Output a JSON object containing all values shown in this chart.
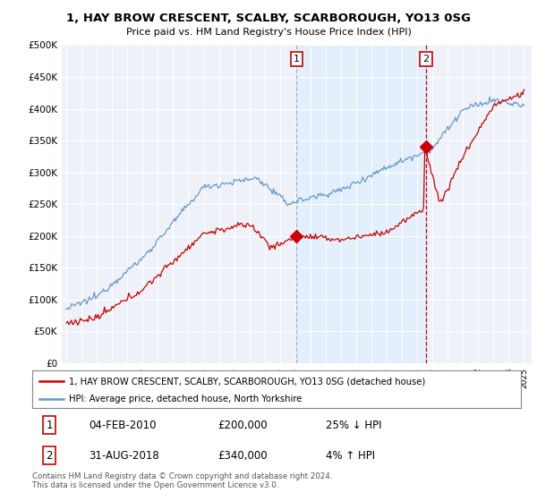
{
  "title": "1, HAY BROW CRESCENT, SCALBY, SCARBOROUGH, YO13 0SG",
  "subtitle": "Price paid vs. HM Land Registry's House Price Index (HPI)",
  "legend_line1": "1, HAY BROW CRESCENT, SCALBY, SCARBOROUGH, YO13 0SG (detached house)",
  "legend_line2": "HPI: Average price, detached house, North Yorkshire",
  "table_row1": [
    "1",
    "04-FEB-2010",
    "£200,000",
    "25% ↓ HPI"
  ],
  "table_row2": [
    "2",
    "31-AUG-2018",
    "£340,000",
    "4% ↑ HPI"
  ],
  "footer": "Contains HM Land Registry data © Crown copyright and database right 2024.\nThis data is licensed under the Open Government Licence v3.0.",
  "red_color": "#cc0000",
  "blue_color": "#6699cc",
  "vline1_color": "#aaaacc",
  "vline2_color": "#cc0000",
  "shade_color": "#ddeeff",
  "point1_year": 2010.083,
  "point1_value": 200000,
  "point2_year": 2018.583,
  "point2_value": 340000,
  "ylim": [
    0,
    500000
  ],
  "yticks": [
    0,
    50000,
    100000,
    150000,
    200000,
    250000,
    300000,
    350000,
    400000,
    450000,
    500000
  ],
  "background_color": "#eef2f8",
  "xlim_left": 1994.7,
  "xlim_right": 2025.5
}
